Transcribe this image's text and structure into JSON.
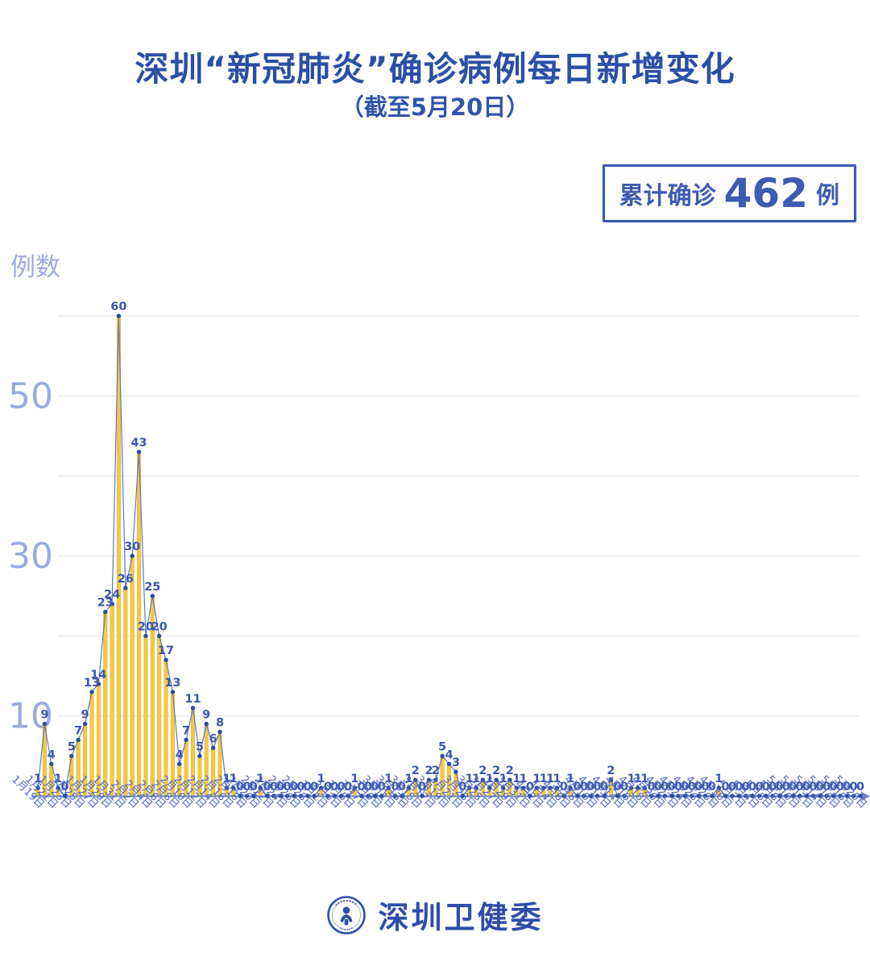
{
  "header": {
    "title": "深圳“新冠肺炎”确诊病例每日新增变化",
    "subtitle": "（截至5月20日）"
  },
  "badge": {
    "label": "累计确诊",
    "value": "462",
    "unit": "例"
  },
  "footer": {
    "name": "深圳卫健委"
  },
  "chart_data": {
    "type": "bar",
    "title": "深圳“新冠肺炎”确诊病例每日新增变化",
    "subtitle": "截至5月20日",
    "ylabel": "例数",
    "xlabel": "",
    "ylim": [
      0,
      62
    ],
    "y_tick_labels": [
      10,
      30,
      50
    ],
    "gridlines": [
      10,
      20,
      30,
      40,
      50,
      60
    ],
    "legend": "none",
    "total_confirmed": 462,
    "start_date": "1月19日",
    "end_date": "5月20日",
    "x_tick_labels": [
      "1月19日",
      "1月21日",
      "1月23日",
      "1月25日",
      "1月27日",
      "1月29日",
      "1月31日",
      "2月2日",
      "2月4日",
      "2月6日",
      "2月8日",
      "2月10日",
      "2月12日",
      "2月14日",
      "2月16日",
      "2月18日",
      "2月20日",
      "2月22日",
      "2月24日",
      "2月26日",
      "2月28日",
      "3月1日",
      "3月3日",
      "3月5日",
      "3月7日",
      "3月9日",
      "3月11日",
      "3月13日",
      "3月15日",
      "3月17日",
      "3月19日",
      "3月21日",
      "3月23日",
      "3月25日",
      "3月27日",
      "3月29日",
      "3月31日",
      "4月2日",
      "4月4日",
      "4月6日",
      "4月8日",
      "4月10日",
      "4月12日",
      "4月14日",
      "4月16日",
      "4月18日",
      "4月20日",
      "4月22日",
      "4月24日",
      "4月26日",
      "4月28日",
      "4月30日",
      "5月2日",
      "5月4日",
      "5月6日",
      "5月8日",
      "5月10日",
      "5月12日",
      "5月14日",
      "5月16日",
      "5月18日",
      "5月20日"
    ],
    "values": [
      1,
      9,
      4,
      1,
      0,
      5,
      7,
      9,
      13,
      14,
      23,
      24,
      60,
      26,
      30,
      43,
      20,
      25,
      20,
      17,
      13,
      4,
      7,
      11,
      5,
      9,
      6,
      8,
      1,
      1,
      0,
      0,
      0,
      1,
      0,
      0,
      0,
      0,
      0,
      0,
      0,
      0,
      1,
      0,
      0,
      0,
      0,
      1,
      0,
      0,
      0,
      0,
      1,
      0,
      0,
      1,
      2,
      0,
      2,
      2,
      5,
      4,
      3,
      0,
      1,
      1,
      2,
      1,
      2,
      1,
      2,
      1,
      1,
      0,
      1,
      1,
      1,
      1,
      0,
      1,
      0,
      0,
      0,
      0,
      0,
      2,
      0,
      0,
      1,
      1,
      1,
      0,
      0,
      0,
      0,
      0,
      0,
      0,
      0,
      0,
      0,
      1,
      0,
      0,
      0,
      0,
      0,
      0,
      0,
      0,
      0,
      0,
      0,
      0,
      0,
      0,
      0,
      0,
      0,
      0,
      0,
      0,
      0
    ],
    "colors": {
      "bar": "#f3c844",
      "bar_edge": "#e2b12f",
      "line": "#5b76c8",
      "dot": "#2c4aa0",
      "value_label": "#3c57ae",
      "x_label": "#4d68c0",
      "y_tick": "#9babdd",
      "gridline": "#e9e9e9",
      "axis": "#7287c5"
    }
  }
}
